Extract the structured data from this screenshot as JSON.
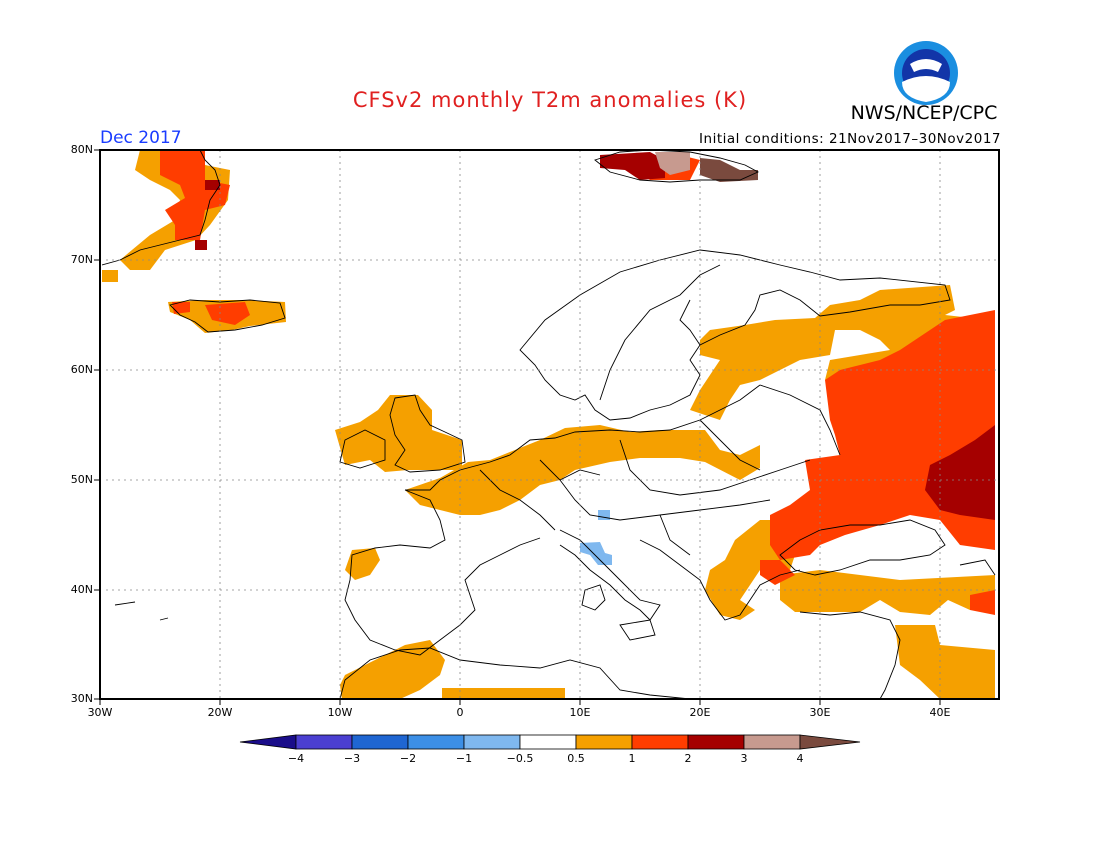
{
  "header": {
    "title": "CFSv2 monthly T2m anomalies (K)",
    "agency": "NWS/NCEP/CPC",
    "logo_text": "NOAA",
    "period": "Dec 2017",
    "initial_conditions": "Initial conditions: 21Nov2017–30Nov2017"
  },
  "map": {
    "region": "Europe",
    "lat_labels": [
      "80N",
      "70N",
      "60N",
      "50N",
      "40N",
      "30N"
    ],
    "lon_labels": [
      "30W",
      "20W",
      "10W",
      "0",
      "10E",
      "20E",
      "30E",
      "40E"
    ],
    "lat_range": [
      30,
      80
    ],
    "lon_range": [
      -30,
      45
    ]
  },
  "colorbar": {
    "ticks": [
      "−4",
      "−3",
      "−2",
      "−1",
      "−0.5",
      "0.5",
      "1",
      "2",
      "3",
      "4"
    ],
    "colors": [
      "#1a0d8a",
      "#4b3fd1",
      "#1f66d2",
      "#3c8fe6",
      "#7fb8ef",
      "#ffffff",
      "#f5a000",
      "#ff3d00",
      "#a50000",
      "#c79a8f",
      "#7a4a3e"
    ]
  }
}
